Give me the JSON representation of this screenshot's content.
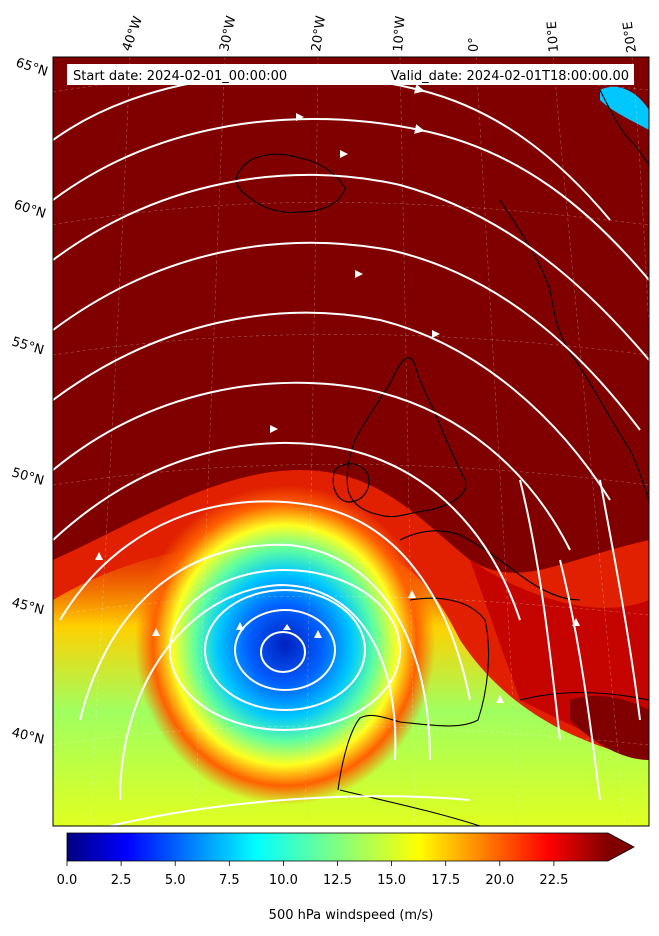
{
  "map": {
    "start_date": "Start date: 2024-02-01_00:00:00",
    "valid_date": "Valid_date: 2024-02-01T18:00:00.00",
    "lon_labels": [
      "40°W",
      "30°W",
      "20°W",
      "10°W",
      "0°",
      "10°E",
      "20°E"
    ],
    "lat_labels": [
      "65°N",
      "60°N",
      "55°N",
      "50°N",
      "45°N",
      "40°N"
    ],
    "variable": "500 hPa windspeed",
    "background_color": "#800000",
    "coastline_color": "#000000",
    "streamline_color": "#ffffff"
  },
  "colorbar": {
    "label": "500 hPa windspeed (m/s)",
    "ticks": [
      "0.0",
      "2.5",
      "5.0",
      "7.5",
      "10.0",
      "12.5",
      "15.0",
      "17.5",
      "20.0",
      "22.5"
    ],
    "min": 0,
    "max": 25,
    "extend": "max",
    "colormap": "jet"
  },
  "features": {
    "low_center": "cut-off low west of Iberia"
  }
}
